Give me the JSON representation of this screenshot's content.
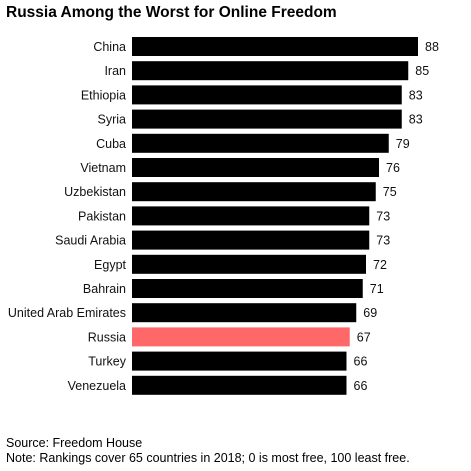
{
  "chart_data": {
    "type": "bar",
    "orientation": "horizontal",
    "title": "Russia Among the Worst for Online Freedom",
    "categories": [
      "China",
      "Iran",
      "Ethiopia",
      "Syria",
      "Cuba",
      "Vietnam",
      "Uzbekistan",
      "Pakistan",
      "Saudi Arabia",
      "Egypt",
      "Bahrain",
      "United Arab Emirates",
      "Russia",
      "Turkey",
      "Venezuela"
    ],
    "values": [
      88,
      85,
      83,
      83,
      79,
      76,
      75,
      73,
      73,
      72,
      71,
      69,
      67,
      66,
      66
    ],
    "xlim": [
      0,
      88
    ],
    "grid": false,
    "colors": {
      "bar": "#000000",
      "highlight": "#ff6868"
    },
    "highlight_category": "Russia"
  },
  "footer": {
    "source": "Source: Freedom House",
    "note": "Note: Rankings cover 65 countries in 2018; 0 is most free, 100 least free."
  }
}
